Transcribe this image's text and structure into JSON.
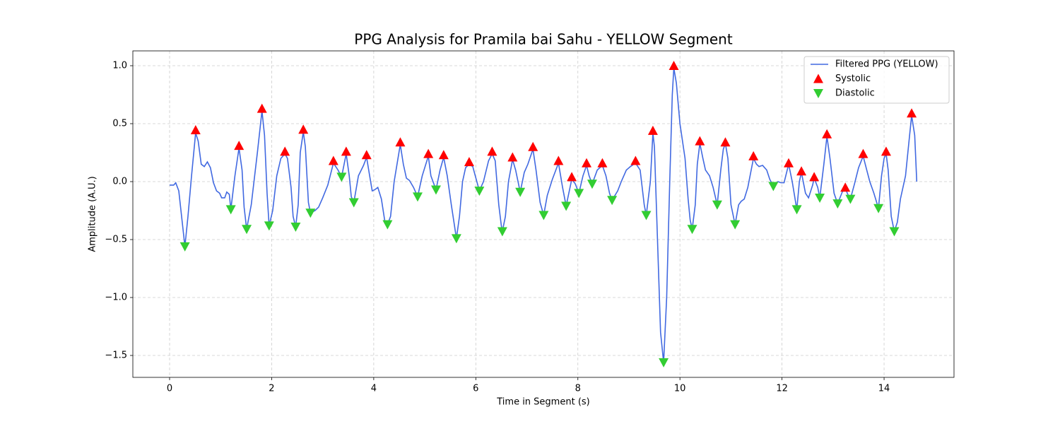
{
  "chart_data": {
    "type": "line",
    "title": "PPG Analysis for Pramila bai Sahu - YELLOW Segment",
    "xlabel": "Time in Segment (s)",
    "ylabel": "Amplitude (A.U.)",
    "xlim": [
      -0.72,
      15.37
    ],
    "ylim": [
      -1.689,
      1.128
    ],
    "xticks": [
      0,
      2,
      4,
      6,
      8,
      10,
      12,
      14
    ],
    "yticks": [
      {
        "value": -1.5,
        "label": "−1.5"
      },
      {
        "value": -1.0,
        "label": "−1.0"
      },
      {
        "value": -0.5,
        "label": "−0.5"
      },
      {
        "value": 0.0,
        "label": "0.0"
      },
      {
        "value": 0.5,
        "label": "0.5"
      },
      {
        "value": 1.0,
        "label": "1.0"
      }
    ],
    "grid": true,
    "legend": "upper right",
    "series": [
      {
        "name": "Filtered PPG (YELLOW)",
        "color": "#4169e1",
        "type": "line",
        "x": [
          0.0,
          0.08,
          0.12,
          0.18,
          0.3,
          0.36,
          0.43,
          0.51,
          0.56,
          0.62,
          0.68,
          0.74,
          0.8,
          0.86,
          0.92,
          0.98,
          1.02,
          1.08,
          1.12,
          1.17,
          1.2,
          1.28,
          1.36,
          1.42,
          1.46,
          1.51,
          1.6,
          1.72,
          1.81,
          1.86,
          1.91,
          1.95,
          2.02,
          2.1,
          2.18,
          2.26,
          2.31,
          2.38,
          2.42,
          2.47,
          2.52,
          2.56,
          2.62,
          2.66,
          2.72,
          2.76,
          2.85,
          2.92,
          3.0,
          3.1,
          3.21,
          3.3,
          3.37,
          3.46,
          3.52,
          3.56,
          3.61,
          3.7,
          3.8,
          3.86,
          3.92,
          3.97,
          4.02,
          4.08,
          4.15,
          4.22,
          4.27,
          4.33,
          4.4,
          4.52,
          4.58,
          4.64,
          4.7,
          4.78,
          4.86,
          4.95,
          5.07,
          5.12,
          5.22,
          5.3,
          5.37,
          5.44,
          5.52,
          5.62,
          5.68,
          5.74,
          5.8,
          5.87,
          5.94,
          6.07,
          6.15,
          6.25,
          6.32,
          6.38,
          6.45,
          6.5,
          6.52,
          6.58,
          6.64,
          6.72,
          6.78,
          6.87,
          6.95,
          7.02,
          7.12,
          7.18,
          7.26,
          7.33,
          7.4,
          7.5,
          7.62,
          7.7,
          7.77,
          7.88,
          7.95,
          8.02,
          8.1,
          8.17,
          8.22,
          8.28,
          8.38,
          8.48,
          8.55,
          8.62,
          8.67,
          8.78,
          8.85,
          8.95,
          9.03,
          9.13,
          9.22,
          9.3,
          9.34,
          9.42,
          9.47,
          9.5,
          9.56,
          9.62,
          9.68,
          9.74,
          9.8,
          9.85,
          9.88,
          9.93,
          10.0,
          10.1,
          10.16,
          10.2,
          10.24,
          10.3,
          10.34,
          10.39,
          10.45,
          10.5,
          10.58,
          10.65,
          10.73,
          10.8,
          10.85,
          10.89,
          10.94,
          11.0,
          11.08,
          11.15,
          11.2,
          11.26,
          11.33,
          11.44,
          11.5,
          11.55,
          11.62,
          11.7,
          11.76,
          11.83,
          11.92,
          11.98,
          12.04,
          12.13,
          12.2,
          12.29,
          12.34,
          12.38,
          12.46,
          12.52,
          12.6,
          12.63,
          12.7,
          12.74,
          12.82,
          12.88,
          12.94,
          13.02,
          13.09,
          13.18,
          13.24,
          13.3,
          13.34,
          13.42,
          13.5,
          13.59,
          13.66,
          13.72,
          13.8,
          13.89,
          13.95,
          14.0,
          14.04,
          14.08,
          14.14,
          14.2,
          14.26,
          14.32,
          14.42,
          14.5,
          14.54,
          14.6,
          14.64
        ],
        "values": [
          -0.03,
          -0.03,
          -0.01,
          -0.08,
          -0.56,
          -0.3,
          0.05,
          0.42,
          0.35,
          0.15,
          0.13,
          0.17,
          0.12,
          -0.01,
          -0.08,
          -0.1,
          -0.14,
          -0.14,
          -0.09,
          -0.11,
          -0.24,
          0.05,
          0.29,
          0.1,
          -0.22,
          -0.41,
          -0.2,
          0.25,
          0.61,
          0.4,
          -0.1,
          -0.38,
          -0.25,
          0.05,
          0.2,
          0.24,
          0.2,
          -0.05,
          -0.3,
          -0.39,
          -0.2,
          0.25,
          0.43,
          0.3,
          -0.18,
          -0.27,
          -0.25,
          -0.22,
          -0.14,
          -0.03,
          0.16,
          0.1,
          0.04,
          0.24,
          0.05,
          -0.13,
          -0.18,
          0.05,
          0.14,
          0.21,
          0.05,
          -0.08,
          -0.07,
          -0.05,
          -0.15,
          -0.35,
          -0.37,
          -0.3,
          0.0,
          0.32,
          0.15,
          0.03,
          0.01,
          -0.05,
          -0.13,
          0.05,
          0.22,
          0.05,
          -0.07,
          0.1,
          0.21,
          0.05,
          -0.2,
          -0.49,
          -0.3,
          0.0,
          0.12,
          0.15,
          0.13,
          -0.08,
          0.0,
          0.18,
          0.24,
          0.18,
          -0.2,
          -0.38,
          -0.43,
          -0.3,
          0.0,
          0.19,
          0.1,
          -0.09,
          0.08,
          0.15,
          0.28,
          0.1,
          -0.18,
          -0.29,
          -0.12,
          0.02,
          0.16,
          -0.05,
          -0.21,
          0.02,
          -0.02,
          -0.1,
          0.05,
          0.14,
          0.05,
          -0.02,
          0.1,
          0.14,
          0.05,
          -0.1,
          -0.16,
          -0.08,
          0.0,
          0.1,
          0.13,
          0.16,
          0.1,
          -0.2,
          -0.29,
          0.0,
          0.42,
          0.3,
          -0.5,
          -1.3,
          -1.56,
          -1.0,
          0.0,
          0.75,
          0.98,
          0.85,
          0.5,
          0.2,
          -0.15,
          -0.33,
          -0.41,
          -0.2,
          0.15,
          0.33,
          0.2,
          0.1,
          0.05,
          -0.05,
          -0.2,
          0.1,
          0.28,
          0.33,
          0.2,
          -0.2,
          -0.37,
          -0.2,
          -0.17,
          -0.15,
          -0.05,
          0.2,
          0.15,
          0.13,
          0.14,
          0.1,
          0.02,
          -0.04,
          0.0,
          -0.01,
          -0.01,
          0.15,
          0.0,
          -0.24,
          0.0,
          0.08,
          -0.1,
          -0.14,
          -0.03,
          0.03,
          -0.05,
          -0.14,
          0.15,
          0.39,
          0.2,
          -0.1,
          -0.19,
          -0.09,
          -0.06,
          -0.12,
          -0.15,
          -0.02,
          0.12,
          0.22,
          0.1,
          0.0,
          -0.1,
          -0.23,
          0.05,
          0.2,
          0.24,
          0.1,
          -0.3,
          -0.43,
          -0.35,
          -0.15,
          0.05,
          0.4,
          0.57,
          0.4,
          0.0
        ]
      },
      {
        "name": "Systolic",
        "color": "#ff0000",
        "type": "scatter",
        "marker": "triangle-up",
        "x": [
          0.51,
          1.36,
          1.81,
          2.26,
          2.62,
          3.21,
          3.46,
          3.86,
          4.52,
          5.07,
          5.37,
          5.87,
          6.32,
          6.72,
          7.12,
          7.62,
          7.88,
          8.17,
          8.48,
          9.13,
          9.47,
          9.88,
          10.39,
          10.89,
          11.44,
          12.13,
          12.38,
          12.63,
          12.88,
          13.24,
          13.59,
          14.04,
          14.54
        ],
        "values": [
          0.445,
          0.31,
          0.63,
          0.26,
          0.45,
          0.18,
          0.26,
          0.23,
          0.34,
          0.24,
          0.23,
          0.17,
          0.26,
          0.21,
          0.3,
          0.18,
          0.04,
          0.16,
          0.16,
          0.18,
          0.44,
          1.0,
          0.35,
          0.34,
          0.22,
          0.16,
          0.09,
          0.04,
          0.41,
          -0.05,
          0.24,
          0.26,
          0.59
        ]
      },
      {
        "name": "Diastolic",
        "color": "#32cd32",
        "type": "scatter",
        "marker": "triangle-down",
        "x": [
          0.3,
          1.2,
          1.51,
          1.95,
          2.47,
          2.76,
          3.37,
          3.61,
          4.27,
          4.86,
          5.22,
          5.62,
          6.07,
          6.52,
          6.87,
          7.33,
          7.77,
          8.02,
          8.28,
          8.67,
          9.34,
          9.68,
          10.24,
          10.73,
          11.08,
          11.83,
          12.29,
          12.74,
          13.09,
          13.34,
          13.89,
          14.2
        ],
        "values": [
          -0.56,
          -0.24,
          -0.41,
          -0.38,
          -0.39,
          -0.27,
          0.04,
          -0.18,
          -0.37,
          -0.13,
          -0.07,
          -0.49,
          -0.08,
          -0.43,
          -0.09,
          -0.29,
          -0.21,
          -0.1,
          -0.02,
          -0.16,
          -0.29,
          -1.56,
          -0.41,
          -0.2,
          -0.37,
          -0.04,
          -0.24,
          -0.14,
          -0.19,
          -0.15,
          -0.23,
          -0.43
        ]
      }
    ]
  }
}
